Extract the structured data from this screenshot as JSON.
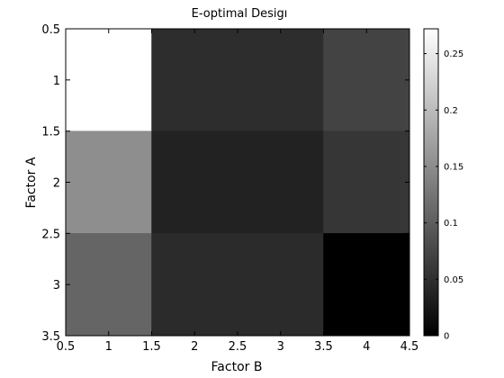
{
  "chart_data": {
    "type": "heatmap",
    "title": "E-optimal Desigı",
    "xlabel": "Factor B",
    "ylabel": "Factor A",
    "x_edges": [
      0.5,
      1.5,
      2.5,
      3.5,
      4.5
    ],
    "y_edges": [
      0.5,
      1.5,
      2.5,
      3.5
    ],
    "xlim": [
      0.5,
      4.5
    ],
    "ylim": [
      0.5,
      3.5
    ],
    "y_direction": "reverse",
    "x_ticks": [
      "0.5",
      "1",
      "1.5",
      "2",
      "2.5",
      "3",
      "3.5",
      "4",
      "4.5"
    ],
    "y_ticks": [
      "0.5",
      "1",
      "1.5",
      "2",
      "2.5",
      "3",
      "3.5"
    ],
    "cells": [
      {
        "x0": 0.5,
        "x1": 1.5,
        "y0": 0.5,
        "y1": 1.5,
        "value": 0.272
      },
      {
        "x0": 1.5,
        "x1": 3.5,
        "y0": 0.5,
        "y1": 1.5,
        "value": 0.048
      },
      {
        "x0": 3.5,
        "x1": 4.5,
        "y0": 0.5,
        "y1": 1.5,
        "value": 0.072
      },
      {
        "x0": 0.5,
        "x1": 1.5,
        "y0": 1.5,
        "y1": 2.5,
        "value": 0.152
      },
      {
        "x0": 1.5,
        "x1": 3.5,
        "y0": 1.5,
        "y1": 2.5,
        "value": 0.036
      },
      {
        "x0": 3.5,
        "x1": 4.5,
        "y0": 1.5,
        "y1": 2.5,
        "value": 0.058
      },
      {
        "x0": 0.5,
        "x1": 1.5,
        "y0": 2.5,
        "y1": 3.5,
        "value": 0.108
      },
      {
        "x0": 1.5,
        "x1": 3.5,
        "y0": 2.5,
        "y1": 3.5,
        "value": 0.046
      },
      {
        "x0": 3.5,
        "x1": 4.5,
        "y0": 2.5,
        "y1": 3.5,
        "value": 0.0
      }
    ],
    "colorbar": {
      "colormap": "gray",
      "clim": [
        0,
        0.272
      ],
      "ticks": [
        0,
        0.05,
        0.1,
        0.15,
        0.2,
        0.25
      ],
      "tick_labels": [
        "0",
        "0.05",
        "0.1",
        "0.15",
        "0.2",
        "0.25"
      ]
    }
  }
}
